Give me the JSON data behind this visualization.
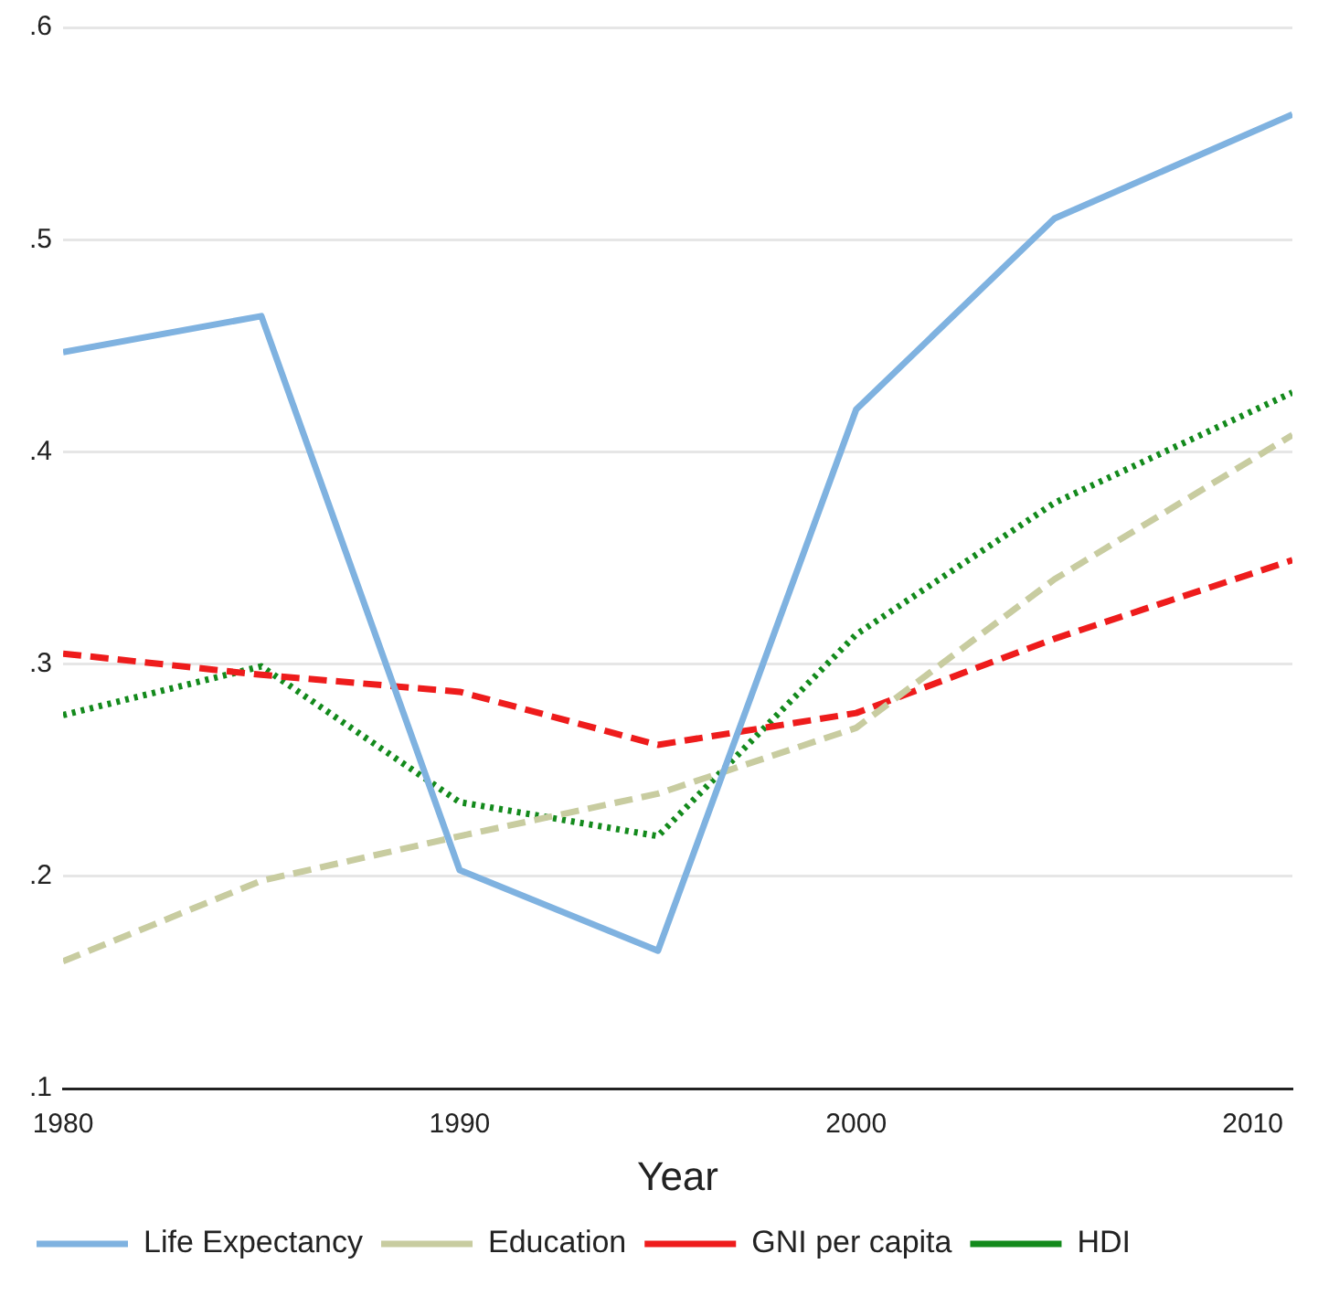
{
  "chart_data": {
    "type": "line",
    "xlabel": "Year",
    "x": [
      1980,
      1985,
      1990,
      1995,
      2000,
      2005,
      2011
    ],
    "series": [
      {
        "name": "Life Expectancy",
        "color": "#7fb2e0",
        "values": [
          0.447,
          0.464,
          0.203,
          0.165,
          0.42,
          0.51,
          0.559
        ],
        "line_style": "solid"
      },
      {
        "name": "Education",
        "color": "#c8cca0",
        "values": [
          0.16,
          0.198,
          0.219,
          0.239,
          0.27,
          0.34,
          0.408
        ],
        "line_style": "dashed"
      },
      {
        "name": "GNI per capita",
        "color": "#ee1c1c",
        "values": [
          0.305,
          0.295,
          0.287,
          0.262,
          0.277,
          0.312,
          0.349
        ],
        "line_style": "dashed"
      },
      {
        "name": "HDI",
        "color": "#138a1c",
        "values": [
          0.276,
          0.299,
          0.235,
          0.219,
          0.314,
          0.376,
          0.428
        ],
        "line_style": "dotted"
      }
    ],
    "xlim": [
      1980,
      2011
    ],
    "xticks": [
      1980,
      1990,
      2000,
      2010
    ],
    "ylim": [
      0.1,
      0.6
    ],
    "yticks": [
      {
        "value": 0.1,
        "label": ".1"
      },
      {
        "value": 0.2,
        "label": ".2"
      },
      {
        "value": 0.3,
        "label": ".3"
      },
      {
        "value": 0.4,
        "label": ".4"
      },
      {
        "value": 0.5,
        "label": ".5"
      },
      {
        "value": 0.6,
        "label": ".6"
      }
    ],
    "grid": "y",
    "legend": "bottom",
    "marker": "none"
  }
}
